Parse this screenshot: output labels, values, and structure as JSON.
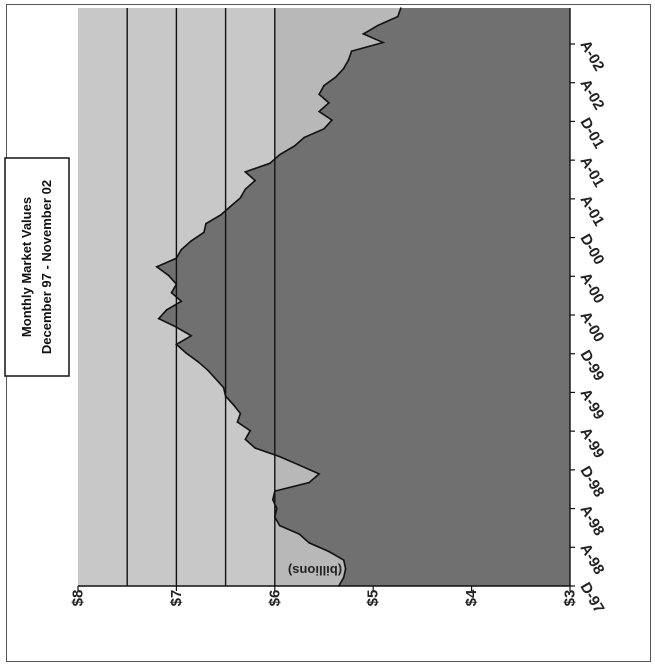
{
  "chart_data": {
    "type": "area",
    "title": "Monthly Market Values",
    "subtitle": "December 97 - November 02",
    "ylabel": "(billions)",
    "xlabel": "",
    "ylim": [
      3,
      8
    ],
    "y_ticks": [
      "$3",
      "$4",
      "$5",
      "$6",
      "$7",
      "$8"
    ],
    "x_tick_labels": [
      "D-97",
      "A-98",
      "A-98",
      "D-98",
      "A-99",
      "A-99",
      "D-99",
      "A-00",
      "A-00",
      "D-00",
      "A-01",
      "A-01",
      "D-01",
      "A-02",
      "A-02"
    ],
    "reference_lines": [
      6.0,
      6.5,
      7.0,
      7.5
    ],
    "orientation": "rotated 90 degrees clockwise",
    "series": [
      {
        "values": [
          5.35,
          5.3,
          5.28,
          5.3,
          5.45,
          5.65,
          5.75,
          5.95,
          6.0,
          5.98,
          6.02,
          6.0,
          5.65,
          5.55,
          5.75,
          5.95,
          6.2,
          6.3,
          6.25,
          6.38,
          6.35,
          6.42,
          6.5,
          6.52,
          6.6,
          6.68,
          6.78,
          6.9,
          7.0,
          6.85,
          7.0,
          7.18,
          7.1,
          6.95,
          7.05,
          7.0,
          7.08,
          7.2,
          7.0,
          6.95,
          6.85,
          6.72,
          6.7,
          6.55,
          6.45,
          6.35,
          6.3,
          6.2,
          6.3,
          6.05,
          5.95,
          5.8,
          5.7,
          5.5,
          5.42,
          5.55,
          5.45,
          5.55,
          5.5,
          5.38,
          5.3,
          5.25,
          5.22,
          4.9,
          5.1,
          4.95,
          4.75,
          4.72
        ]
      }
    ]
  },
  "colors": {
    "plot_bg": "#b8b8b8",
    "band_bg": "#c8c8c8",
    "area_fill": "#707070",
    "line": "#111111"
  }
}
